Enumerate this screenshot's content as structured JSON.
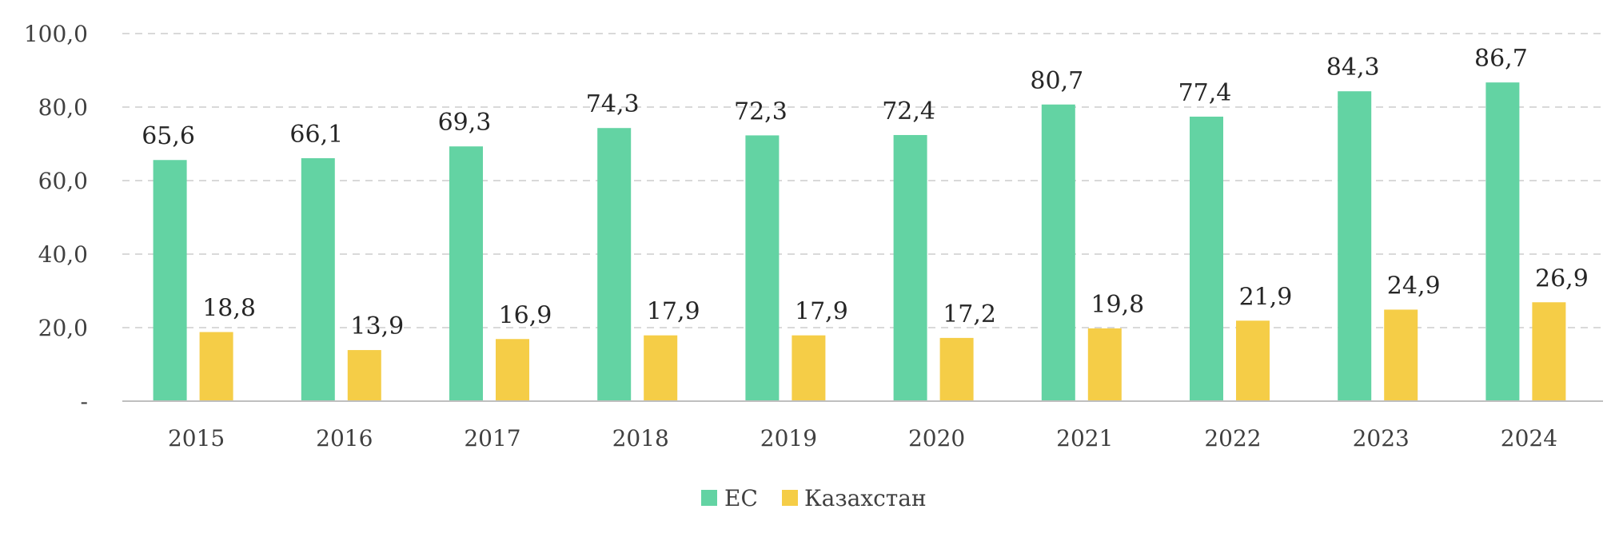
{
  "chart_data": {
    "type": "bar",
    "categories": [
      "2015",
      "2016",
      "2017",
      "2018",
      "2019",
      "2020",
      "2021",
      "2022",
      "2023",
      "2024"
    ],
    "series": [
      {
        "name": "ЕС",
        "color": "#63d3a3",
        "values": [
          65.6,
          66.1,
          69.3,
          74.3,
          72.3,
          72.4,
          80.7,
          77.4,
          84.3,
          86.7
        ],
        "labels": [
          "65,6",
          "66,1",
          "69,3",
          "74,3",
          "72,3",
          "72,4",
          "80,7",
          "77,4",
          "84,3",
          "86,7"
        ]
      },
      {
        "name": "Казахстан",
        "color": "#f5cd47",
        "values": [
          18.8,
          13.9,
          16.9,
          17.9,
          17.9,
          17.2,
          19.8,
          21.9,
          24.9,
          26.9
        ],
        "labels": [
          "18,8",
          "13,9",
          "16,9",
          "17,9",
          "17,9",
          "17,2",
          "19,8",
          "21,9",
          "24,9",
          "26,9"
        ]
      }
    ],
    "ylim": [
      0,
      100
    ],
    "yticks": [
      0,
      20,
      40,
      60,
      80,
      100
    ],
    "ytick_labels": [
      "-",
      "20,0",
      "40,0",
      "60,0",
      "80,0",
      "100,0"
    ],
    "grid": true,
    "grid_style": "dashed",
    "legend_position": "bottom-center",
    "title": "",
    "xlabel": "",
    "ylabel": ""
  }
}
